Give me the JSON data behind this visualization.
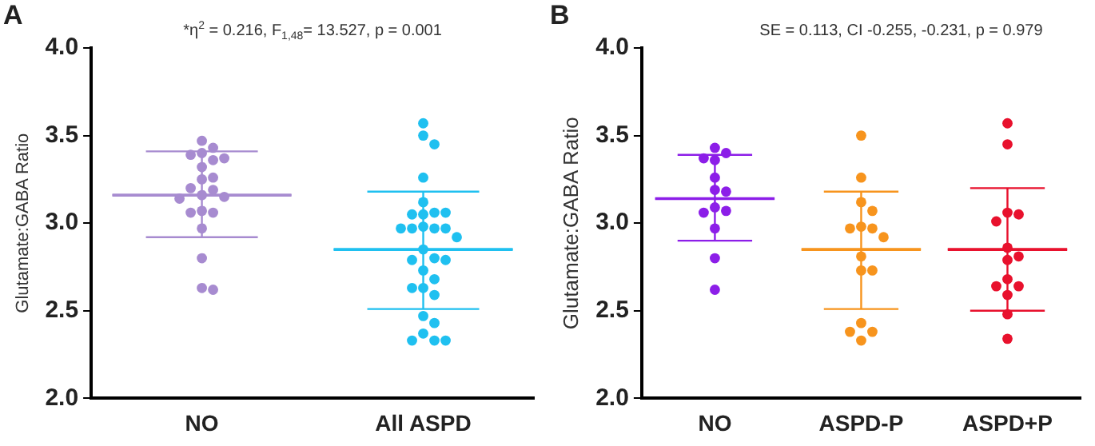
{
  "chart_data": [
    {
      "type": "scatter",
      "title": "A",
      "annotations": [
        "*η$^{2}$ = 0.216, F$_{1,48}$= 13.527, p = 0.001"
      ],
      "ylabel": "Glutamate:GABA Ratio",
      "categories": [
        "NO",
        "All ASPD"
      ],
      "ylim": [
        2,
        4
      ],
      "yticks": [
        {
          "value": 2,
          "label": "2.0"
        },
        {
          "value": 2.5,
          "label": "2.5"
        },
        {
          "value": 3,
          "label": "3.0"
        },
        {
          "value": 3.5,
          "label": "3.5"
        },
        {
          "value": 4,
          "label": "4.0"
        }
      ],
      "grid": false,
      "legend": false,
      "marker": "circle",
      "series": [
        {
          "color": "#a78bd0",
          "x": [
            "NO",
            "NO",
            "NO",
            "NO",
            "NO",
            "NO",
            "NO",
            "NO",
            "NO",
            "NO",
            "NO",
            "NO",
            "NO",
            "NO",
            "NO",
            "NO",
            "NO",
            "NO",
            "NO",
            "NO",
            "NO"
          ],
          "values": [
            3.47,
            3.43,
            3.4,
            3.39,
            3.37,
            3.36,
            3.32,
            3.26,
            3.25,
            3.2,
            3.19,
            3.16,
            3.15,
            3.14,
            3.07,
            3.06,
            3.06,
            2.97,
            2.8,
            2.63,
            2.62
          ]
        },
        {
          "color": "#1fc0f0",
          "x": [
            "All ASPD",
            "All ASPD",
            "All ASPD",
            "All ASPD",
            "All ASPD",
            "All ASPD",
            "All ASPD",
            "All ASPD",
            "All ASPD",
            "All ASPD",
            "All ASPD",
            "All ASPD",
            "All ASPD",
            "All ASPD",
            "All ASPD",
            "All ASPD",
            "All ASPD",
            "All ASPD",
            "All ASPD",
            "All ASPD",
            "All ASPD",
            "All ASPD",
            "All ASPD",
            "All ASPD",
            "All ASPD",
            "All ASPD",
            "All ASPD",
            "All ASPD",
            "All ASPD",
            "All ASPD"
          ],
          "values": [
            3.57,
            3.5,
            3.45,
            3.26,
            3.12,
            3.06,
            3.05,
            3.05,
            3.06,
            2.98,
            2.97,
            2.97,
            2.97,
            2.97,
            2.92,
            2.85,
            2.8,
            2.79,
            2.79,
            2.73,
            2.68,
            2.63,
            2.63,
            2.59,
            2.47,
            2.43,
            2.37,
            2.33,
            2.33,
            2.33
          ]
        },
        {
          "type": "box",
          "colors": [
            "#a78bd0",
            "#1fc0f0"
          ],
          "boxes": [
            {
              "low": 2.92,
              "q1": 3.16,
              "median": 3.16,
              "q3": 3.16,
              "high": 3.41
            },
            {
              "low": 2.51,
              "q1": 2.85,
              "median": 2.85,
              "q3": 2.85,
              "high": 3.18
            }
          ]
        }
      ]
    },
    {
      "type": "scatter",
      "title": "B",
      "annotations": [
        "SE = 0.113, CI -0.255, -0.231, p = 0.979"
      ],
      "ylabel": "Glutamate:GABA Ratio",
      "categories": [
        "NO",
        "ASPD-P",
        "ASPD+P"
      ],
      "ylim": [
        2,
        4
      ],
      "yticks": [
        {
          "value": 2,
          "label": "2.0"
        },
        {
          "value": 2.5,
          "label": "2.5"
        },
        {
          "value": 3,
          "label": "3.0"
        },
        {
          "value": 3.5,
          "label": "3.5"
        },
        {
          "value": 4,
          "label": "4.0"
        }
      ],
      "grid": false,
      "legend": false,
      "marker": "circle",
      "series": [
        {
          "color": "#8c1ee8",
          "x": [
            "NO",
            "NO",
            "NO",
            "NO",
            "NO",
            "NO",
            "NO",
            "NO",
            "NO",
            "NO",
            "NO",
            "NO",
            "NO"
          ],
          "values": [
            3.43,
            3.4,
            3.37,
            3.36,
            3.26,
            3.19,
            3.18,
            3.09,
            3.07,
            3.06,
            2.97,
            2.8,
            2.62
          ]
        },
        {
          "color": "#f7941d",
          "x": [
            "ASPD-P",
            "ASPD-P",
            "ASPD-P",
            "ASPD-P",
            "ASPD-P",
            "ASPD-P",
            "ASPD-P",
            "ASPD-P",
            "ASPD-P",
            "ASPD-P",
            "ASPD-P",
            "ASPD-P",
            "ASPD-P",
            "ASPD-P",
            "ASPD-P"
          ],
          "values": [
            3.5,
            3.26,
            3.12,
            3.07,
            2.98,
            2.97,
            2.97,
            2.92,
            2.81,
            2.73,
            2.73,
            2.43,
            2.38,
            2.38,
            2.33
          ]
        },
        {
          "color": "#e8112d",
          "x": [
            "ASPD+P",
            "ASPD+P",
            "ASPD+P",
            "ASPD+P",
            "ASPD+P",
            "ASPD+P",
            "ASPD+P",
            "ASPD+P",
            "ASPD+P",
            "ASPD+P",
            "ASPD+P",
            "ASPD+P",
            "ASPD+P",
            "ASPD+P"
          ],
          "values": [
            3.57,
            3.45,
            3.06,
            3.05,
            3.01,
            2.86,
            2.81,
            2.79,
            2.68,
            2.64,
            2.64,
            2.59,
            2.48,
            2.34
          ]
        },
        {
          "type": "box",
          "colors": [
            "#8c1ee8",
            "#f7941d",
            "#e8112d"
          ],
          "boxes": [
            {
              "low": 2.9,
              "q1": 3.14,
              "median": 3.14,
              "q3": 3.14,
              "high": 3.39
            },
            {
              "low": 2.51,
              "q1": 2.85,
              "median": 2.85,
              "q3": 2.85,
              "high": 3.18
            },
            {
              "low": 2.5,
              "q1": 2.85,
              "median": 2.85,
              "q3": 2.85,
              "high": 3.2
            }
          ]
        }
      ]
    }
  ]
}
